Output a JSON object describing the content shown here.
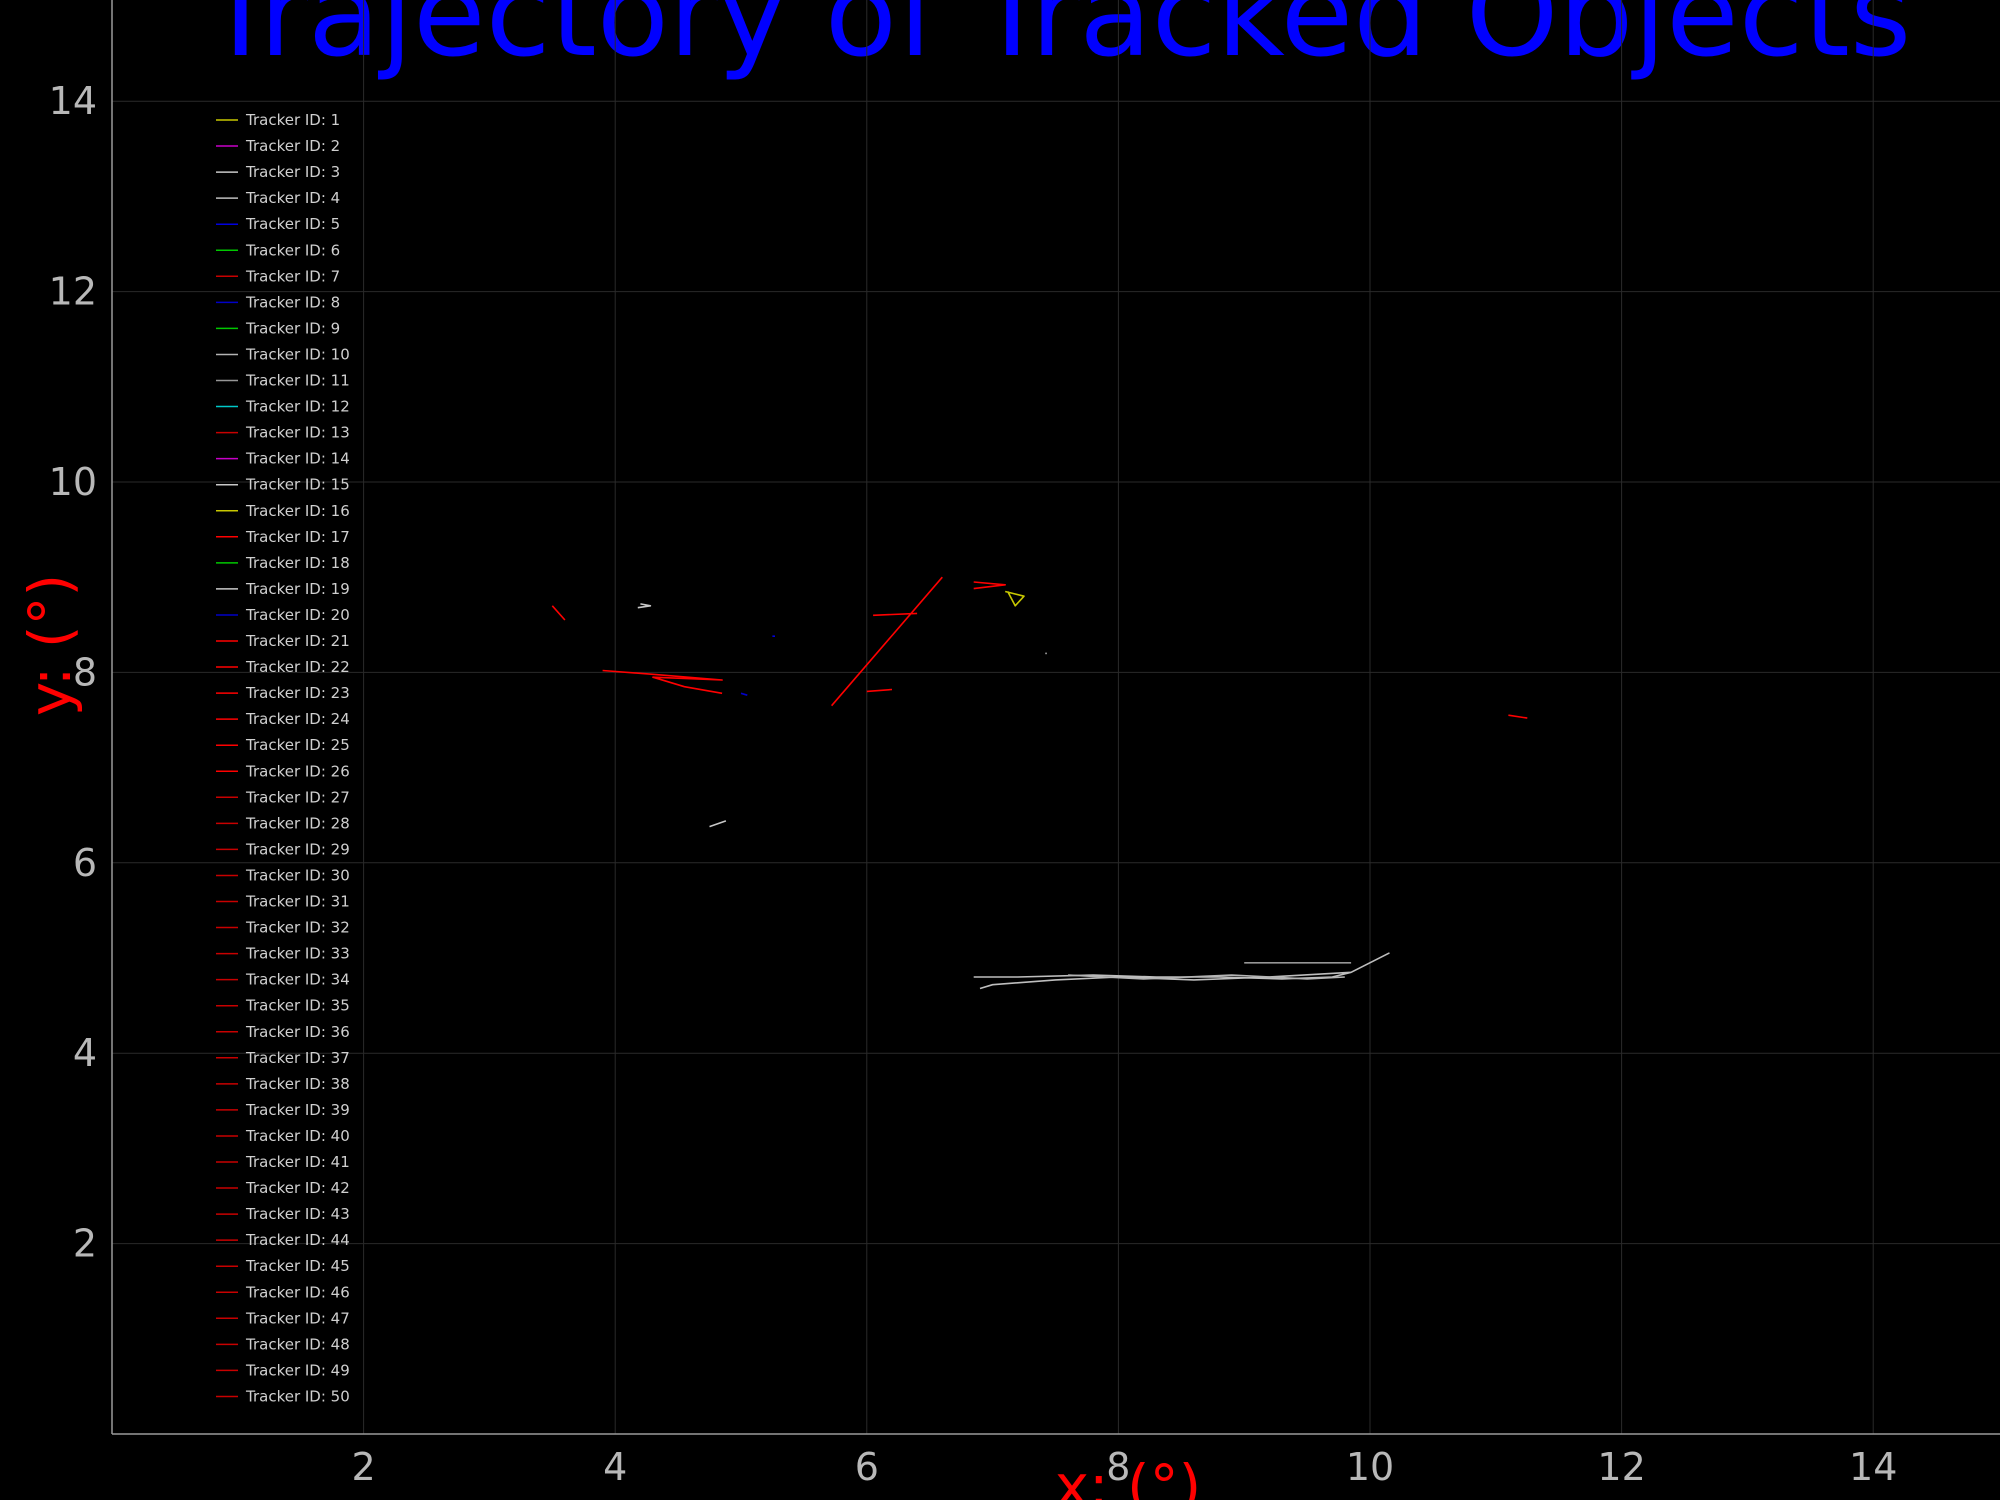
{
  "chart_data": {
    "type": "line",
    "title": "Trajectory of Tracked Objects",
    "xlabel": "x: (°)",
    "ylabel": "y: (°)",
    "xlim": [
      0,
      15
    ],
    "ylim": [
      0,
      15
    ],
    "x_ticks": [
      2,
      4,
      6,
      8,
      10,
      12,
      14
    ],
    "y_ticks": [
      2,
      4,
      6,
      8,
      10,
      12,
      14
    ],
    "x_tick_labels": [
      "2",
      "4",
      "6",
      "8",
      "10",
      "12",
      "14"
    ],
    "y_tick_labels": [
      "2",
      "4",
      "6",
      "8",
      "10",
      "12",
      "14"
    ],
    "grid": true,
    "legend_position": "top-left",
    "background": "#000000",
    "series": [
      {
        "name": "Tracker ID: 1",
        "color": "#c8c800",
        "points": [
          [
            7.1,
            8.85
          ],
          [
            7.25,
            8.8
          ],
          [
            7.18,
            8.7
          ],
          [
            7.12,
            8.85
          ]
        ]
      },
      {
        "name": "Tracker ID: 2",
        "color": "#c800c8",
        "points": []
      },
      {
        "name": "Tracker ID: 3",
        "color": "#c8c8c8",
        "points": [
          [
            4.75,
            6.38
          ],
          [
            4.88,
            6.44
          ]
        ]
      },
      {
        "name": "Tracker ID: 4",
        "color": "#bebebe",
        "points": [
          [
            6.85,
            4.8
          ],
          [
            7.2,
            4.8
          ],
          [
            7.8,
            4.82
          ],
          [
            8.3,
            4.8
          ],
          [
            8.8,
            4.8
          ],
          [
            9.3,
            4.78
          ],
          [
            9.7,
            4.8
          ],
          [
            9.85,
            4.85
          ],
          [
            10.15,
            5.05
          ],
          [
            9.85,
            4.85
          ],
          [
            9.2,
            4.8
          ],
          [
            8.6,
            4.77
          ],
          [
            8.0,
            4.8
          ],
          [
            7.5,
            4.77
          ],
          [
            7.0,
            4.72
          ],
          [
            6.9,
            4.68
          ]
        ]
      },
      {
        "name": "Tracker ID: 5",
        "color": "#0000e0",
        "points": [
          [
            5.25,
            8.38
          ],
          [
            5.27,
            8.38
          ]
        ]
      },
      {
        "name": "Tracker ID: 6",
        "color": "#00c800",
        "points": []
      },
      {
        "name": "Tracker ID: 7",
        "color": "#c80000",
        "points": []
      },
      {
        "name": "Tracker ID: 8",
        "color": "#0000c8",
        "points": [
          [
            5.0,
            7.78
          ],
          [
            5.05,
            7.76
          ]
        ]
      },
      {
        "name": "Tracker ID: 9",
        "color": "#00c800",
        "points": []
      },
      {
        "name": "Tracker ID: 10",
        "color": "#b4b4b4",
        "points": [
          [
            7.6,
            4.82
          ],
          [
            8.2,
            4.78
          ],
          [
            8.9,
            4.82
          ],
          [
            9.5,
            4.78
          ],
          [
            9.8,
            4.8
          ]
        ]
      },
      {
        "name": "Tracker ID: 11",
        "color": "#969696",
        "points": [
          [
            9.0,
            4.95
          ],
          [
            9.85,
            4.95
          ]
        ]
      },
      {
        "name": "Tracker ID: 12",
        "color": "#00c8c8",
        "points": []
      },
      {
        "name": "Tracker ID: 13",
        "color": "#c80000",
        "points": []
      },
      {
        "name": "Tracker ID: 14",
        "color": "#c800c8",
        "points": []
      },
      {
        "name": "Tracker ID: 15",
        "color": "#c8c8c8",
        "points": [
          [
            4.2,
            8.72
          ],
          [
            4.28,
            8.7
          ],
          [
            4.18,
            8.68
          ]
        ]
      },
      {
        "name": "Tracker ID: 16",
        "color": "#c8c800",
        "points": []
      },
      {
        "name": "Tracker ID: 17",
        "color": "#ff0000",
        "points": [
          [
            5.72,
            7.65
          ],
          [
            6.6,
            9.0
          ]
        ]
      },
      {
        "name": "Tracker ID: 18",
        "color": "#00c800",
        "points": []
      },
      {
        "name": "Tracker ID: 19",
        "color": "#c8c8c8",
        "points": [
          [
            7.42,
            8.2
          ],
          [
            7.43,
            8.2
          ]
        ]
      },
      {
        "name": "Tracker ID: 20",
        "color": "#0000c8",
        "points": []
      },
      {
        "name": "Tracker ID: 21",
        "color": "#ff0000",
        "points": [
          [
            3.9,
            8.02
          ],
          [
            4.3,
            7.98
          ],
          [
            4.85,
            7.92
          ],
          [
            4.3,
            7.95
          ],
          [
            4.55,
            7.85
          ],
          [
            4.85,
            7.78
          ]
        ]
      },
      {
        "name": "Tracker ID: 22",
        "color": "#ff0000",
        "points": [
          [
            6.85,
            8.95
          ],
          [
            7.1,
            8.92
          ],
          [
            6.85,
            8.88
          ]
        ]
      },
      {
        "name": "Tracker ID: 23",
        "color": "#ff0000",
        "points": [
          [
            6.05,
            8.6
          ],
          [
            6.4,
            8.62
          ]
        ]
      },
      {
        "name": "Tracker ID: 24",
        "color": "#ff0000",
        "points": [
          [
            3.5,
            8.7
          ],
          [
            3.6,
            8.55
          ]
        ]
      },
      {
        "name": "Tracker ID: 25",
        "color": "#ff0000",
        "points": [
          [
            6.0,
            7.8
          ],
          [
            6.2,
            7.82
          ]
        ]
      },
      {
        "name": "Tracker ID: 26",
        "color": "#ff0000",
        "points": [
          [
            11.1,
            7.55
          ],
          [
            11.25,
            7.52
          ]
        ]
      },
      {
        "name": "Tracker ID: 27",
        "color": "#c80000",
        "points": []
      },
      {
        "name": "Tracker ID: 28",
        "color": "#c80000",
        "points": []
      },
      {
        "name": "Tracker ID: 29",
        "color": "#c80000",
        "points": []
      },
      {
        "name": "Tracker ID: 30",
        "color": "#c80000",
        "points": []
      },
      {
        "name": "Tracker ID: 31",
        "color": "#c80000",
        "points": []
      },
      {
        "name": "Tracker ID: 32",
        "color": "#c80000",
        "points": []
      },
      {
        "name": "Tracker ID: 33",
        "color": "#c80000",
        "points": []
      },
      {
        "name": "Tracker ID: 34",
        "color": "#c80000",
        "points": []
      },
      {
        "name": "Tracker ID: 35",
        "color": "#c80000",
        "points": []
      },
      {
        "name": "Tracker ID: 36",
        "color": "#c80000",
        "points": []
      },
      {
        "name": "Tracker ID: 37",
        "color": "#c80000",
        "points": []
      },
      {
        "name": "Tracker ID: 38",
        "color": "#c80000",
        "points": []
      },
      {
        "name": "Tracker ID: 39",
        "color": "#c80000",
        "points": []
      },
      {
        "name": "Tracker ID: 40",
        "color": "#c80000",
        "points": []
      },
      {
        "name": "Tracker ID: 41",
        "color": "#c80000",
        "points": []
      },
      {
        "name": "Tracker ID: 42",
        "color": "#c80000",
        "points": []
      },
      {
        "name": "Tracker ID: 43",
        "color": "#c80000",
        "points": []
      },
      {
        "name": "Tracker ID: 44",
        "color": "#c80000",
        "points": []
      },
      {
        "name": "Tracker ID: 45",
        "color": "#c80000",
        "points": []
      },
      {
        "name": "Tracker ID: 46",
        "color": "#c80000",
        "points": []
      },
      {
        "name": "Tracker ID: 47",
        "color": "#c80000",
        "points": []
      },
      {
        "name": "Tracker ID: 48",
        "color": "#c80000",
        "points": []
      },
      {
        "name": "Tracker ID: 49",
        "color": "#c80000",
        "points": []
      },
      {
        "name": "Tracker ID: 50",
        "color": "#c80000",
        "points": []
      }
    ]
  }
}
